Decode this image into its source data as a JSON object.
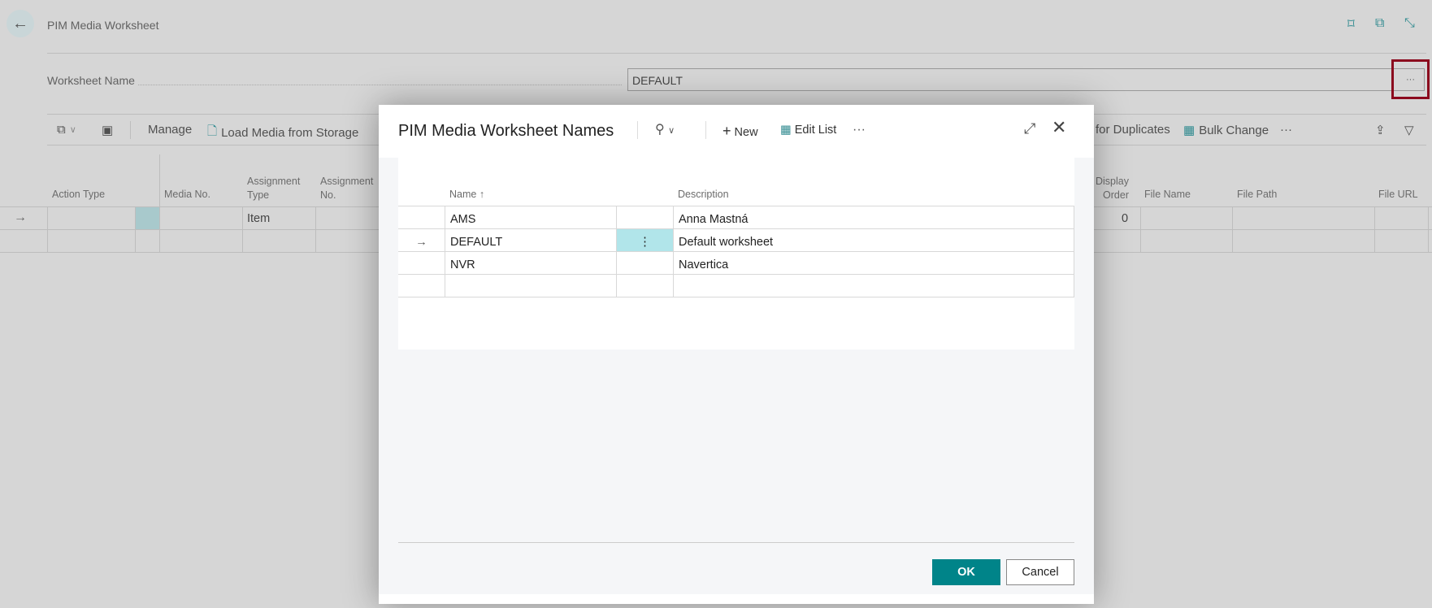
{
  "page": {
    "title": "PIM Media Worksheet",
    "worksheet_name_label": "Worksheet Name",
    "worksheet_name_value": "DEFAULT",
    "lookup_button": "···"
  },
  "toolbar": {
    "manage": "Manage",
    "load_media": "Load Media from Storage",
    "duplicates": "for Duplicates",
    "bulk_change": "Bulk Change",
    "more": "···"
  },
  "grid": {
    "columns": [
      "Action Type",
      "Media No.",
      "Assignment Type",
      "Assignment No.",
      "Display Order",
      "File Name",
      "File Path",
      "File URL"
    ],
    "col_multiline": {
      "assignment_type": [
        "Assignment",
        "Type"
      ],
      "assignment_no": [
        "Assignment",
        "No."
      ],
      "display_order": [
        "Display",
        "Order"
      ]
    },
    "rows": [
      {
        "assignment_type": "Item",
        "display_order": "0"
      }
    ]
  },
  "dialog": {
    "title": "PIM Media Worksheet Names",
    "new": "New",
    "edit_list": "Edit List",
    "more": "···",
    "columns": {
      "name": "Name",
      "sort": "↑",
      "description": "Description"
    },
    "rows": [
      {
        "name": "AMS",
        "description": "Anna Mastná",
        "selected": false
      },
      {
        "name": "DEFAULT",
        "description": "Default worksheet",
        "selected": true
      },
      {
        "name": "NVR",
        "description": "Navertica",
        "selected": false
      }
    ],
    "ok": "OK",
    "cancel": "Cancel"
  },
  "colors": {
    "accent": "#008489",
    "selection": "#b1e5ea",
    "highlight_box": "#8b0a1e"
  }
}
